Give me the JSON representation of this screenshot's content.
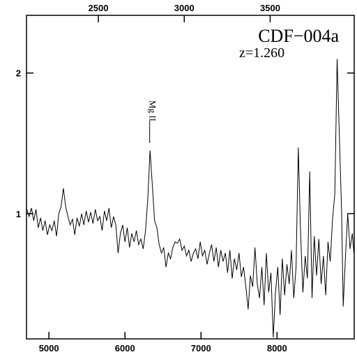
{
  "chart_data": {
    "type": "line",
    "title": "CDF−004a",
    "subtitle": "z=1.260",
    "annotations": [
      {
        "text": "Mg II",
        "x": 6325
      }
    ],
    "color": "#000000",
    "xlim": [
      4705,
      9015
    ],
    "xticks": [
      5000,
      6000,
      7000,
      8000
    ],
    "x2lim": [
      2082,
      3989
    ],
    "x2ticks": [
      2500,
      3000,
      3500
    ],
    "ylim": [
      0.11,
      2.41
    ],
    "yticks": [
      1,
      2
    ],
    "x": [
      4710,
      4740,
      4770,
      4800,
      4830,
      4860,
      4890,
      4920,
      4950,
      4980,
      5010,
      5040,
      5070,
      5100,
      5130,
      5160,
      5190,
      5220,
      5250,
      5280,
      5310,
      5340,
      5370,
      5400,
      5430,
      5460,
      5490,
      5520,
      5550,
      5580,
      5610,
      5640,
      5670,
      5700,
      5730,
      5760,
      5790,
      5820,
      5850,
      5880,
      5910,
      5940,
      5970,
      6000,
      6030,
      6060,
      6090,
      6120,
      6150,
      6180,
      6210,
      6240,
      6270,
      6300,
      6330,
      6360,
      6390,
      6420,
      6450,
      6480,
      6510,
      6540,
      6570,
      6600,
      6630,
      6660,
      6690,
      6720,
      6750,
      6780,
      6810,
      6840,
      6870,
      6900,
      6930,
      6960,
      6990,
      7020,
      7050,
      7080,
      7110,
      7140,
      7170,
      7200,
      7230,
      7260,
      7290,
      7320,
      7350,
      7380,
      7410,
      7440,
      7470,
      7500,
      7530,
      7560,
      7590,
      7620,
      7650,
      7680,
      7710,
      7740,
      7770,
      7800,
      7830,
      7860,
      7890,
      7920,
      7950,
      7980,
      8010,
      8040,
      8070,
      8100,
      8130,
      8160,
      8190,
      8220,
      8250,
      8280,
      8310,
      8340,
      8370,
      8400,
      8430,
      8460,
      8490,
      8520,
      8550,
      8580,
      8610,
      8640,
      8670,
      8700,
      8730,
      8760,
      8790,
      8820,
      8850,
      8870,
      8900,
      8930,
      8960,
      8990,
      9010
    ],
    "values": [
      1.03,
      0.98,
      1.04,
      0.95,
      1.03,
      0.9,
      0.97,
      0.88,
      0.95,
      0.85,
      0.92,
      0.88,
      0.95,
      0.84,
      1.0,
      1.05,
      1.18,
      1.05,
      0.98,
      0.92,
      0.96,
      0.85,
      0.97,
      0.91,
      1.0,
      0.92,
      1.02,
      0.94,
      1.01,
      0.93,
      1.03,
      0.95,
      0.98,
      0.88,
      1.02,
      0.95,
      1.04,
      0.9,
      0.98,
      0.92,
      0.72,
      0.86,
      0.92,
      0.8,
      0.9,
      0.76,
      0.86,
      0.8,
      0.88,
      0.78,
      0.82,
      0.75,
      0.88,
      1.1,
      1.45,
      1.2,
      0.95,
      0.9,
      0.78,
      0.72,
      0.76,
      0.62,
      0.72,
      0.68,
      0.76,
      0.8,
      0.79,
      0.82,
      0.74,
      0.77,
      0.7,
      0.74,
      0.66,
      0.72,
      0.75,
      0.68,
      0.8,
      0.7,
      0.74,
      0.64,
      0.72,
      0.78,
      0.66,
      0.76,
      0.62,
      0.74,
      0.66,
      0.72,
      0.58,
      0.74,
      0.54,
      0.68,
      0.6,
      0.72,
      0.55,
      0.62,
      0.48,
      0.32,
      0.56,
      0.48,
      0.76,
      0.5,
      0.4,
      0.62,
      0.35,
      0.72,
      0.44,
      0.58,
      0.12,
      0.44,
      0.62,
      0.28,
      0.68,
      0.42,
      0.64,
      0.5,
      0.74,
      0.4,
      0.62,
      1.47,
      0.86,
      0.44,
      0.7,
      0.54,
      1.3,
      0.4,
      0.84,
      0.56,
      0.82,
      0.5,
      0.7,
      0.42,
      0.8,
      0.66,
      0.96,
      1.14,
      2.1,
      1.55,
      1.0,
      0.34,
      0.7,
      1.0,
      0.75,
      0.86,
      0.72
    ]
  }
}
